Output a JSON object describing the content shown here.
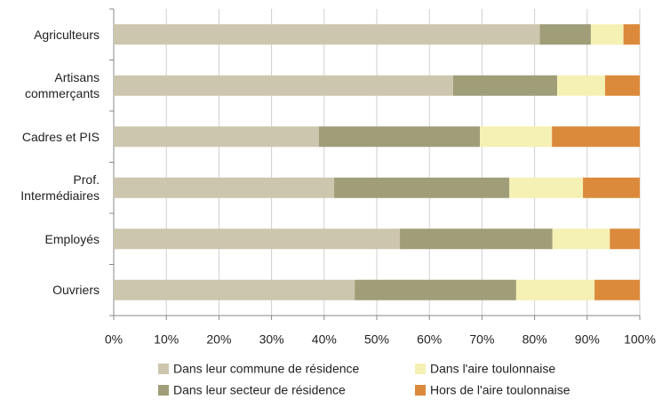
{
  "chart_data": {
    "type": "stacked_barh",
    "categories": [
      "Agriculteurs",
      "Artisans\ncommerçants",
      "Cadres et PIS",
      "Prof.\nIntermédiaires",
      "Employés",
      "Ouvriers"
    ],
    "series": [
      {
        "name": "Dans leur commune de résidence",
        "color": "#cdc6ae",
        "values": [
          81,
          64.5,
          39,
          41.9,
          54.4,
          45.8
        ]
      },
      {
        "name": "Dans leur secteur de résidence",
        "color": "#a09e78",
        "values": [
          9.7,
          19.8,
          30.6,
          33.3,
          29,
          30.7
        ]
      },
      {
        "name": "Dans l'aire toulonnaise",
        "color": "#f5f0b3",
        "values": [
          6.2,
          9.1,
          13.7,
          14,
          10.9,
          14.9
        ]
      },
      {
        "name": "Hors de l'aire toulonnaise",
        "color": "#db8a3c",
        "values": [
          3.1,
          6.6,
          16.7,
          10.8,
          5.7,
          8.6
        ]
      }
    ],
    "xlim": [
      0,
      100
    ],
    "xticks": [
      {
        "value": 0,
        "label": "0%"
      },
      {
        "value": 10,
        "label": "10%"
      },
      {
        "value": 20,
        "label": "20%"
      },
      {
        "value": 30,
        "label": "30%"
      },
      {
        "value": 40,
        "label": "40%"
      },
      {
        "value": 50,
        "label": "50%"
      },
      {
        "value": 60,
        "label": "60%"
      },
      {
        "value": 70,
        "label": "70%"
      },
      {
        "value": 80,
        "label": "80%"
      },
      {
        "value": 90,
        "label": "90%"
      },
      {
        "value": 100,
        "label": "100%"
      }
    ],
    "grid": true
  }
}
